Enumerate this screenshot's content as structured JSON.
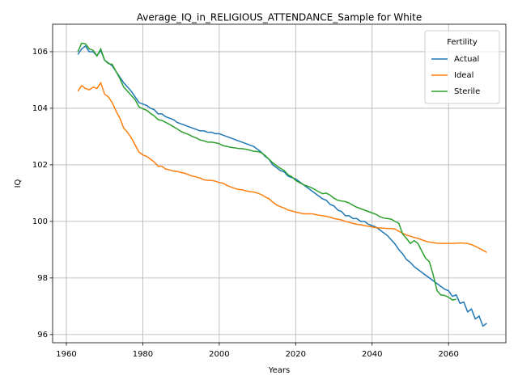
{
  "chart_data": {
    "type": "line",
    "title": "Average_IQ_in_RELIGIOUS_ATTENDANCE_Sample for White",
    "x_label": "Years",
    "y_label": "IQ",
    "legend_title": "Fertility",
    "legend_position": "upper right",
    "grid": true,
    "x": [
      1963,
      1964,
      1965,
      1966,
      1967,
      1968,
      1969,
      1970,
      1971,
      1972,
      1973,
      1974,
      1975,
      1976,
      1977,
      1978,
      1979,
      1980,
      1981,
      1982,
      1983,
      1984,
      1985,
      1986,
      1987,
      1988,
      1989,
      1990,
      1991,
      1992,
      1993,
      1994,
      1995,
      1996,
      1997,
      1998,
      1999,
      2000,
      2001,
      2002,
      2003,
      2004,
      2005,
      2006,
      2007,
      2008,
      2009,
      2010,
      2011,
      2012,
      2013,
      2014,
      2015,
      2016,
      2017,
      2018,
      2019,
      2020,
      2021,
      2022,
      2023,
      2024,
      2025,
      2026,
      2027,
      2028,
      2029,
      2030,
      2031,
      2032,
      2033,
      2034,
      2035,
      2036,
      2037,
      2038,
      2039,
      2040,
      2041,
      2042,
      2043,
      2044,
      2045,
      2046,
      2047,
      2048,
      2049,
      2050,
      2051,
      2052,
      2053,
      2054,
      2055,
      2056,
      2057,
      2058,
      2059,
      2060,
      2061,
      2062,
      2063,
      2064,
      2065,
      2066,
      2067,
      2068,
      2069,
      2070
    ],
    "series": [
      {
        "name": "Actual",
        "color": "#1f77b4",
        "values": [
          105.9,
          106.1,
          106.2,
          106.0,
          106.0,
          105.85,
          106.05,
          105.7,
          105.6,
          105.5,
          105.3,
          105.1,
          104.9,
          104.75,
          104.6,
          104.4,
          104.2,
          104.15,
          104.1,
          104.0,
          103.95,
          103.8,
          103.8,
          103.7,
          103.65,
          103.6,
          103.5,
          103.45,
          103.4,
          103.35,
          103.3,
          103.25,
          103.2,
          103.2,
          103.15,
          103.15,
          103.1,
          103.1,
          103.05,
          103.0,
          102.95,
          102.9,
          102.85,
          102.8,
          102.75,
          102.7,
          102.65,
          102.55,
          102.45,
          102.3,
          102.2,
          102.0,
          101.9,
          101.8,
          101.75,
          101.6,
          101.55,
          101.5,
          101.4,
          101.3,
          101.2,
          101.1,
          101.0,
          100.9,
          100.8,
          100.75,
          100.6,
          100.55,
          100.4,
          100.35,
          100.2,
          100.2,
          100.1,
          100.1,
          100.0,
          100.0,
          99.9,
          99.85,
          99.8,
          99.7,
          99.6,
          99.5,
          99.35,
          99.2,
          99.0,
          98.85,
          98.65,
          98.55,
          98.4,
          98.3,
          98.2,
          98.1,
          98.0,
          97.9,
          97.8,
          97.7,
          97.6,
          97.55,
          97.35,
          97.4,
          97.1,
          97.15,
          96.8,
          96.9,
          96.55,
          96.65,
          96.3,
          96.4
        ]
      },
      {
        "name": "Ideal",
        "color": "#ff7f0e",
        "values": [
          104.6,
          104.8,
          104.7,
          104.65,
          104.75,
          104.7,
          104.9,
          104.5,
          104.4,
          104.2,
          103.9,
          103.65,
          103.3,
          103.15,
          102.95,
          102.7,
          102.45,
          102.35,
          102.3,
          102.2,
          102.1,
          101.95,
          101.95,
          101.85,
          101.82,
          101.78,
          101.77,
          101.73,
          101.7,
          101.65,
          101.6,
          101.57,
          101.53,
          101.47,
          101.45,
          101.45,
          101.42,
          101.37,
          101.35,
          101.27,
          101.22,
          101.17,
          101.13,
          101.12,
          101.08,
          101.05,
          101.04,
          101.0,
          100.95,
          100.87,
          100.8,
          100.68,
          100.58,
          100.52,
          100.47,
          100.4,
          100.37,
          100.33,
          100.3,
          100.27,
          100.27,
          100.27,
          100.25,
          100.22,
          100.2,
          100.18,
          100.15,
          100.1,
          100.08,
          100.05,
          100.0,
          99.97,
          99.93,
          99.9,
          99.88,
          99.85,
          99.83,
          99.8,
          99.78,
          99.77,
          99.76,
          99.75,
          99.75,
          99.73,
          99.65,
          99.58,
          99.52,
          99.48,
          99.43,
          99.4,
          99.35,
          99.3,
          99.27,
          99.25,
          99.23,
          99.22,
          99.22,
          99.22,
          99.22,
          99.23,
          99.24,
          99.23,
          99.22,
          99.18,
          99.12,
          99.05,
          98.98,
          98.9
        ]
      },
      {
        "name": "Sterile",
        "color": "#2ca02c",
        "values": [
          106.0,
          106.3,
          106.28,
          106.1,
          106.05,
          105.85,
          106.1,
          105.7,
          105.58,
          105.55,
          105.3,
          105.05,
          104.75,
          104.6,
          104.45,
          104.3,
          104.05,
          103.98,
          103.93,
          103.82,
          103.73,
          103.6,
          103.57,
          103.5,
          103.43,
          103.35,
          103.27,
          103.18,
          103.12,
          103.07,
          103.0,
          102.95,
          102.88,
          102.85,
          102.8,
          102.8,
          102.78,
          102.75,
          102.68,
          102.65,
          102.62,
          102.6,
          102.58,
          102.57,
          102.55,
          102.52,
          102.48,
          102.47,
          102.43,
          102.33,
          102.2,
          102.07,
          101.97,
          101.88,
          101.8,
          101.65,
          101.58,
          101.45,
          101.37,
          101.3,
          101.25,
          101.2,
          101.13,
          101.05,
          100.98,
          101.0,
          100.93,
          100.82,
          100.75,
          100.72,
          100.7,
          100.65,
          100.57,
          100.5,
          100.45,
          100.4,
          100.35,
          100.3,
          100.25,
          100.17,
          100.12,
          100.1,
          100.08,
          100.0,
          99.93,
          99.55,
          99.4,
          99.22,
          99.32,
          99.22,
          98.95,
          98.7,
          98.57,
          98.1,
          97.55,
          97.4,
          97.38,
          97.32,
          97.22,
          97.25,
          null,
          null,
          null,
          null,
          null,
          null,
          null,
          null
        ]
      }
    ],
    "xlim": [
      1956.4,
      2075
    ],
    "ylim": [
      95.71,
      106.97
    ],
    "xticks": [
      1960,
      1980,
      2000,
      2020,
      2040,
      2060
    ],
    "yticks": [
      96,
      98,
      100,
      102,
      104,
      106
    ]
  }
}
